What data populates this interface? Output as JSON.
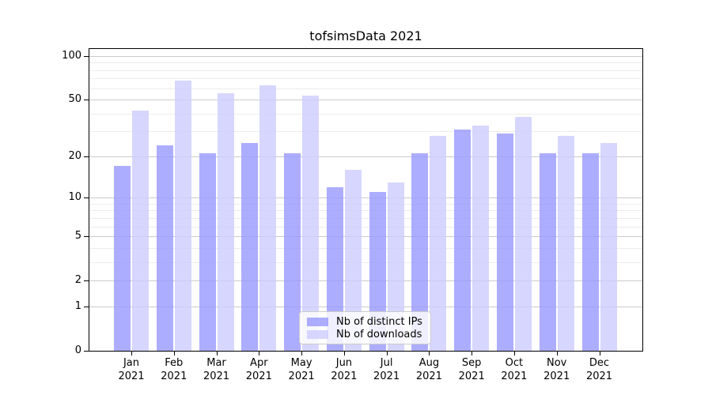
{
  "title": "tofsimsData 2021",
  "chart_data": {
    "type": "bar",
    "title": "tofsimsData 2021",
    "categories": [
      "Jan",
      "Feb",
      "Mar",
      "Apr",
      "May",
      "Jun",
      "Jul",
      "Aug",
      "Sep",
      "Oct",
      "Nov",
      "Dec"
    ],
    "year": "2021",
    "series": [
      {
        "name": "Nb of distinct IPs",
        "color": "#9999ff",
        "opacity": 0.8,
        "values": [
          17,
          24,
          21,
          25,
          21,
          12,
          11,
          21,
          31,
          29,
          21,
          21
        ]
      },
      {
        "name": "Nb of downloads",
        "color": "#ccccff",
        "opacity": 0.8,
        "values": [
          42,
          68,
          55,
          63,
          53,
          16,
          13,
          28,
          33,
          38,
          28,
          25
        ]
      }
    ],
    "yscale": "log1p",
    "yticks_major": [
      0,
      1,
      2,
      5,
      10,
      20,
      50,
      100
    ],
    "yticks_minor": [
      3,
      4,
      6,
      7,
      8,
      9,
      30,
      40,
      60,
      70,
      80,
      90
    ],
    "ylim": [
      0,
      112
    ],
    "grid": true,
    "legend_position": "lower center"
  },
  "colors": {
    "background": "#ffffff",
    "axis": "#000000",
    "grid_major": "#8c8c8c",
    "grid_minor": "#b4b4b4",
    "legend_border": "#cccccc"
  }
}
